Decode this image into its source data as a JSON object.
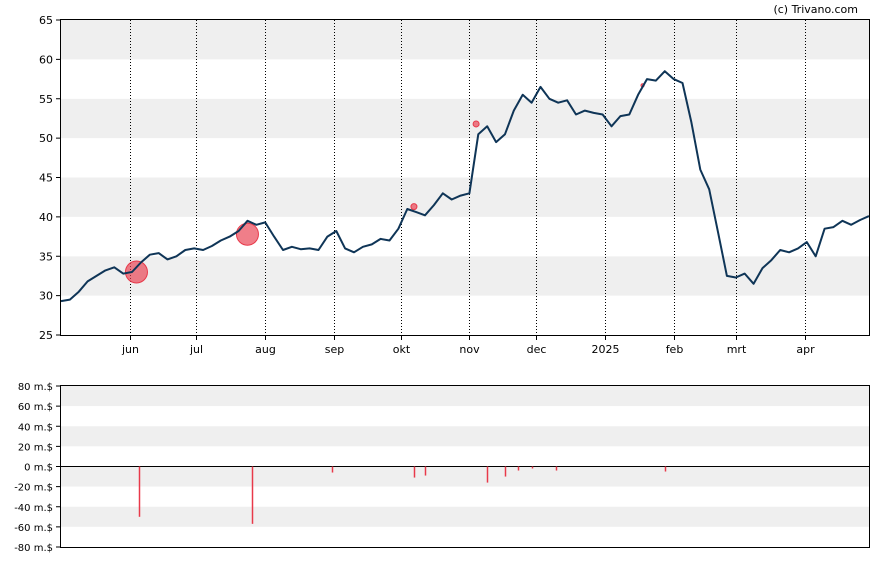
{
  "copyright": "(c) Trivano.com",
  "chart_data": [
    {
      "type": "line",
      "y_ticks": [
        25,
        30,
        35,
        40,
        45,
        50,
        55,
        60,
        65
      ],
      "ylim": [
        25,
        65
      ],
      "x_labels": [
        "jun",
        "jul",
        "aug",
        "sep",
        "okt",
        "nov",
        "dec",
        "2025",
        "feb",
        "mrt",
        "apr"
      ],
      "x_label_dates": [
        "2024-06-01",
        "2024-07-01",
        "2024-08-01",
        "2024-09-01",
        "2024-10-01",
        "2024-11-01",
        "2024-12-01",
        "2025-01-01",
        "2025-02-01",
        "2025-03-01",
        "2025-04-01"
      ],
      "x_range": [
        "2024-05-01",
        "2025-04-30"
      ],
      "grid": "dotted vertical at month starts, alternating horizontal bands",
      "line_color": "#0f3557",
      "series": [
        {
          "x": [
            "2024-05-01",
            "2024-05-05",
            "2024-05-09",
            "2024-05-13",
            "2024-05-17",
            "2024-05-21",
            "2024-05-25",
            "2024-05-29",
            "2024-06-02",
            "2024-06-06",
            "2024-06-10",
            "2024-06-14",
            "2024-06-18",
            "2024-06-22",
            "2024-06-26",
            "2024-06-30",
            "2024-07-04",
            "2024-07-08",
            "2024-07-12",
            "2024-07-16",
            "2024-07-20",
            "2024-07-24",
            "2024-07-28",
            "2024-08-01",
            "2024-08-05",
            "2024-08-09",
            "2024-08-13",
            "2024-08-17",
            "2024-08-21",
            "2024-08-25",
            "2024-08-29",
            "2024-09-02",
            "2024-09-06",
            "2024-09-10",
            "2024-09-14",
            "2024-09-18",
            "2024-09-22",
            "2024-09-26",
            "2024-09-30",
            "2024-10-04",
            "2024-10-08",
            "2024-10-12",
            "2024-10-16",
            "2024-10-20",
            "2024-10-24",
            "2024-10-28",
            "2024-11-01",
            "2024-11-05",
            "2024-11-09",
            "2024-11-13",
            "2024-11-17",
            "2024-11-21",
            "2024-11-25",
            "2024-11-29",
            "2024-12-03",
            "2024-12-07",
            "2024-12-11",
            "2024-12-15",
            "2024-12-19",
            "2024-12-23",
            "2024-12-27",
            "2024-12-31",
            "2025-01-04",
            "2025-01-08",
            "2025-01-12",
            "2025-01-16",
            "2025-01-20",
            "2025-01-24",
            "2025-01-28",
            "2025-02-01",
            "2025-02-05",
            "2025-02-09",
            "2025-02-13",
            "2025-02-17",
            "2025-02-21",
            "2025-02-25",
            "2025-03-01",
            "2025-03-05",
            "2025-03-09",
            "2025-03-13",
            "2025-03-17",
            "2025-03-21",
            "2025-03-25",
            "2025-03-29",
            "2025-04-02",
            "2025-04-06",
            "2025-04-10",
            "2025-04-14",
            "2025-04-18",
            "2025-04-22",
            "2025-04-26",
            "2025-04-30"
          ],
          "values": [
            29.3,
            29.5,
            30.5,
            31.8,
            32.5,
            33.2,
            33.6,
            32.8,
            33.0,
            34.2,
            35.2,
            35.4,
            34.6,
            35.0,
            35.8,
            36.0,
            35.8,
            36.3,
            37.0,
            37.5,
            38.2,
            39.5,
            39.0,
            39.3,
            37.5,
            35.8,
            36.2,
            35.9,
            36.0,
            35.8,
            37.5,
            38.2,
            36.0,
            35.5,
            36.2,
            36.5,
            37.2,
            37.0,
            38.5,
            41.0,
            40.6,
            40.2,
            41.5,
            43.0,
            42.2,
            42.7,
            43.0,
            50.5,
            51.5,
            49.5,
            50.5,
            53.5,
            55.5,
            54.5,
            56.5,
            55.0,
            54.5,
            54.8,
            53.0,
            53.5,
            53.2,
            53.0,
            51.5,
            52.8,
            53.0,
            55.5,
            57.5,
            57.3,
            58.5,
            57.5,
            57.0,
            52.0,
            46.0,
            43.5,
            38.0,
            32.5,
            32.3,
            32.8,
            31.5,
            33.5,
            34.5,
            35.8,
            35.5,
            36.0,
            36.8,
            35.0,
            38.5,
            38.7,
            39.5,
            39.0,
            39.6,
            40.1
          ]
        }
      ],
      "markers": [
        {
          "date": "2024-06-04",
          "value": 33.0,
          "size": "large"
        },
        {
          "date": "2024-07-24",
          "value": 37.8,
          "size": "large"
        },
        {
          "date": "2024-10-07",
          "value": 41.3,
          "size": "small"
        },
        {
          "date": "2024-11-04",
          "value": 51.8,
          "size": "small"
        },
        {
          "date": "2025-01-18",
          "value": 56.7,
          "size": "tiny"
        }
      ],
      "marker_color": "#e8394a"
    },
    {
      "type": "bar",
      "y_ticks": [
        "80 m.$",
        "60 m.$",
        "40 m.$",
        "20 m.$",
        "0 m.$",
        "-20 m.$",
        "-40 m.$",
        "-60 m.$",
        "-80 m.$"
      ],
      "y_tick_values": [
        80,
        60,
        40,
        20,
        0,
        -20,
        -40,
        -60,
        -80
      ],
      "ylim": [
        -80,
        80
      ],
      "unit": "m.$",
      "bar_color": "#e8394a",
      "bars": [
        {
          "date": "2024-06-05",
          "value": -50
        },
        {
          "date": "2024-07-26",
          "value": -57
        },
        {
          "date": "2024-08-31",
          "value": -6
        },
        {
          "date": "2024-10-07",
          "value": -11
        },
        {
          "date": "2024-10-12",
          "value": -9
        },
        {
          "date": "2024-11-09",
          "value": -16
        },
        {
          "date": "2024-11-17",
          "value": -10
        },
        {
          "date": "2024-11-23",
          "value": -4
        },
        {
          "date": "2024-11-29",
          "value": -2
        },
        {
          "date": "2024-12-10",
          "value": -4
        },
        {
          "date": "2025-01-28",
          "value": -5
        }
      ]
    }
  ]
}
